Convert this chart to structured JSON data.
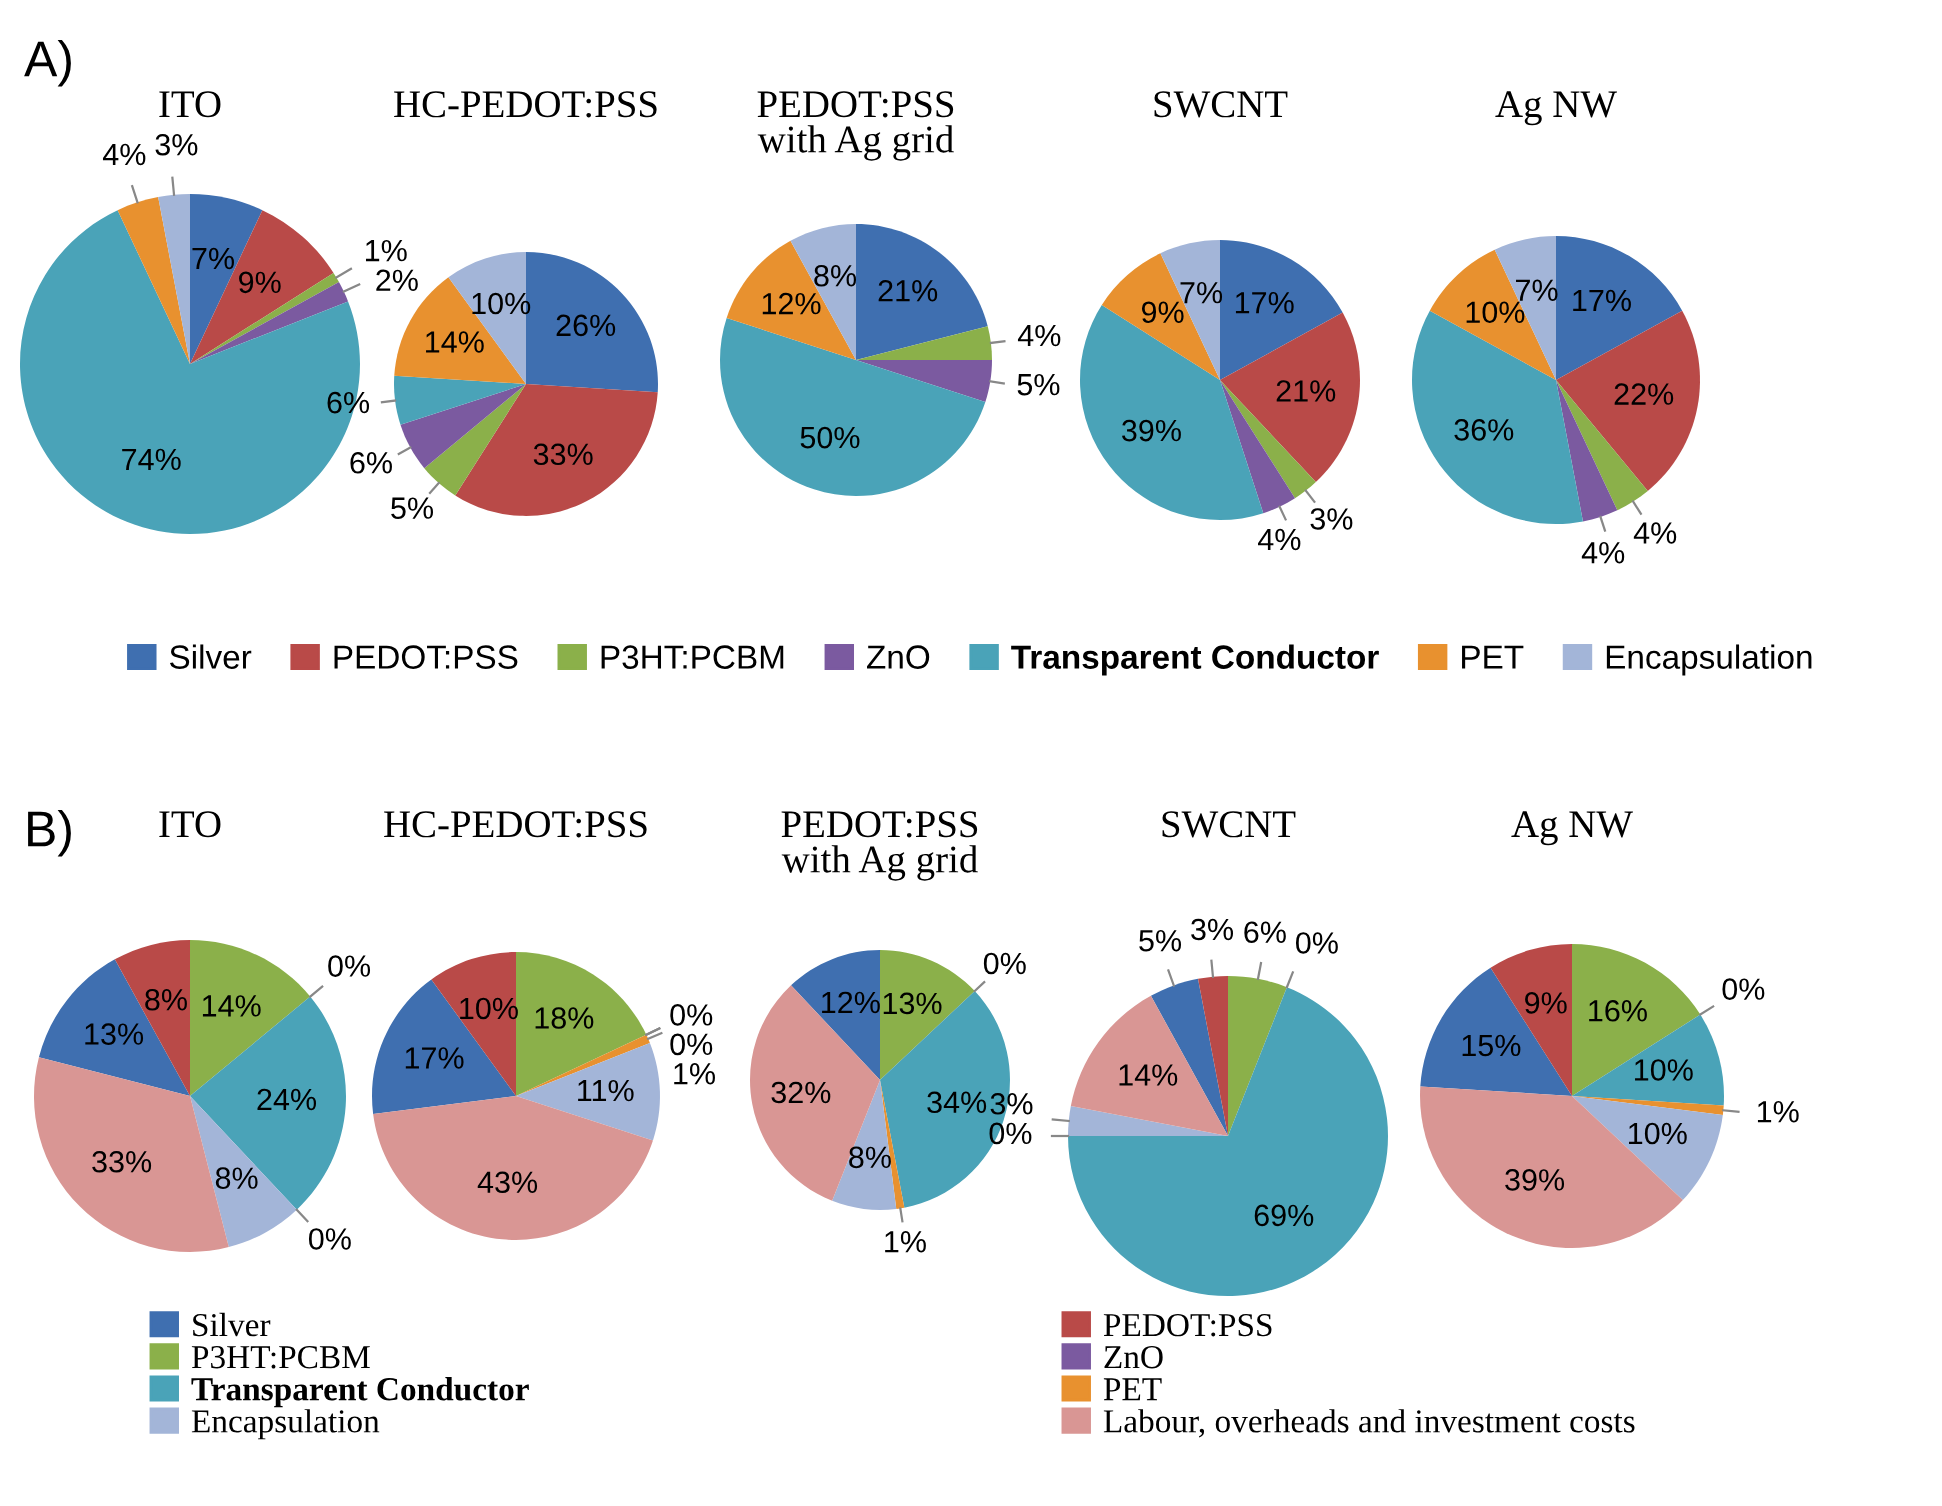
{
  "chart_data": [
    {
      "type": "pie",
      "title": "ITO",
      "annotations": [
        "A)"
      ],
      "categories": [
        null,
        null,
        null,
        null,
        null,
        null,
        null
      ],
      "values": [
        7,
        9,
        1,
        2,
        74,
        4,
        3
      ],
      "value_labels": [
        "7%",
        "9%",
        "1%",
        "2%",
        "74%",
        "4%",
        "3%"
      ],
      "colors": [
        "#3f6fb0",
        "#b94a48",
        "#8bb04a",
        "#7b5aa0",
        "#4aa3b8",
        "#e8912f",
        "#a3b5d8"
      ]
    },
    {
      "type": "pie",
      "title": "HC-PEDOT:PSS",
      "categories": [
        null,
        null,
        null,
        null,
        null,
        null,
        null
      ],
      "values": [
        26,
        33,
        5,
        6,
        6,
        14,
        10
      ],
      "value_labels": [
        "26%",
        "33%",
        "5%",
        "6%",
        "6%",
        "14%",
        "10%"
      ],
      "colors": [
        "#3f6fb0",
        "#b94a48",
        "#8bb04a",
        "#7b5aa0",
        "#4aa3b8",
        "#e8912f",
        "#a3b5d8"
      ]
    },
    {
      "type": "pie",
      "title": "PEDOT:PSS\nwith Ag grid",
      "legend": "bottom",
      "categories": [
        "Silver",
        "PEDOT:PSS",
        "P3HT:PCBM",
        "ZnO",
        "Transparent Conductor",
        "PET",
        "Encapsulation"
      ],
      "values": [
        21,
        0,
        4,
        5,
        50,
        12,
        8
      ],
      "value_labels": [
        "21%",
        null,
        "4%",
        "5%",
        "50%",
        "12%",
        "8%"
      ],
      "colors": [
        "#3f6fb0",
        "#b94a48",
        "#8bb04a",
        "#7b5aa0",
        "#4aa3b8",
        "#e8912f",
        "#a3b5d8"
      ]
    },
    {
      "type": "pie",
      "title": "SWCNT",
      "categories": [
        null,
        null,
        null,
        null,
        null,
        null,
        null
      ],
      "values": [
        17,
        21,
        3,
        4,
        39,
        9,
        7
      ],
      "value_labels": [
        "17%",
        "21%",
        "3%",
        "4%",
        "39%",
        "9%",
        "7%"
      ],
      "colors": [
        "#3f6fb0",
        "#b94a48",
        "#8bb04a",
        "#7b5aa0",
        "#4aa3b8",
        "#e8912f",
        "#a3b5d8"
      ]
    },
    {
      "type": "pie",
      "title": "Ag NW",
      "categories": [
        null,
        null,
        null,
        null,
        null,
        null,
        null
      ],
      "values": [
        17,
        22,
        4,
        4,
        36,
        10,
        7
      ],
      "value_labels": [
        "17%",
        "22%",
        "4%",
        "4%",
        "36%",
        "10%",
        "7%"
      ],
      "colors": [
        "#3f6fb0",
        "#b94a48",
        "#8bb04a",
        "#7b5aa0",
        "#4aa3b8",
        "#e8912f",
        "#a3b5d8"
      ]
    },
    {
      "type": "pie",
      "title": "ITO",
      "annotations": [
        "B)"
      ],
      "categories": [
        null,
        null,
        null,
        null,
        null,
        null,
        null,
        null
      ],
      "values": [
        13,
        8,
        14,
        0,
        24,
        0,
        8,
        33
      ],
      "value_labels": [
        "13%",
        "8%",
        "14%",
        "0%",
        "24%",
        "0%",
        "8%",
        "33%"
      ],
      "colors": [
        "#3f6fb0",
        "#b94a48",
        "#8bb04a",
        "#7b5aa0",
        "#4aa3b8",
        "#e8912f",
        "#a3b5d8",
        "#d99694"
      ]
    },
    {
      "type": "pie",
      "title": "HC-PEDOT:PSS",
      "categories": [
        null,
        null,
        null,
        null,
        null,
        null,
        null,
        null
      ],
      "values": [
        17,
        10,
        18,
        0,
        0,
        1,
        11,
        43
      ],
      "value_labels": [
        "17%",
        "10%",
        "18%",
        "0%",
        "0%",
        "1%",
        "11%",
        "43%"
      ],
      "colors": [
        "#3f6fb0",
        "#b94a48",
        "#8bb04a",
        "#7b5aa0",
        "#4aa3b8",
        "#e8912f",
        "#a3b5d8",
        "#d99694"
      ]
    },
    {
      "type": "pie",
      "title": "PEDOT:PSS\nwith Ag grid",
      "legend": "bottom",
      "categories": [
        "Silver",
        "PEDOT:PSS",
        "P3HT:PCBM",
        "ZnO",
        "Transparent Conductor",
        "PET",
        "Encapsulation",
        "Labour, overheads and investment costs"
      ],
      "values": [
        12,
        0,
        13,
        0,
        34,
        1,
        8,
        32
      ],
      "value_labels": [
        "12%",
        null,
        "13%",
        "0%",
        "34%",
        "1%",
        "8%",
        "32%"
      ],
      "colors": [
        "#3f6fb0",
        "#b94a48",
        "#8bb04a",
        "#7b5aa0",
        "#4aa3b8",
        "#e8912f",
        "#a3b5d8",
        "#d99694"
      ]
    },
    {
      "type": "pie",
      "title": "SWCNT",
      "categories": [
        null,
        null,
        null,
        null,
        null,
        null,
        null,
        null
      ],
      "values": [
        5,
        3,
        6,
        0,
        69,
        0,
        3,
        14
      ],
      "value_labels": [
        "5%",
        "3%",
        "6%",
        "0%",
        "69%",
        "0%",
        "3%",
        "14%"
      ],
      "colors": [
        "#3f6fb0",
        "#b94a48",
        "#8bb04a",
        "#7b5aa0",
        "#4aa3b8",
        "#e8912f",
        "#a3b5d8",
        "#d99694"
      ]
    },
    {
      "type": "pie",
      "title": "Ag NW",
      "categories": [
        null,
        null,
        null,
        null,
        null,
        null,
        null,
        null
      ],
      "values": [
        15,
        9,
        16,
        0,
        10,
        1,
        10,
        39
      ],
      "value_labels": [
        "15%",
        "9%",
        "16%",
        "0%",
        "10%",
        "1%",
        "10%",
        "39%"
      ],
      "colors": [
        "#3f6fb0",
        "#b94a48",
        "#8bb04a",
        "#7b5aa0",
        "#4aa3b8",
        "#e8912f",
        "#a3b5d8",
        "#d99694"
      ]
    }
  ]
}
